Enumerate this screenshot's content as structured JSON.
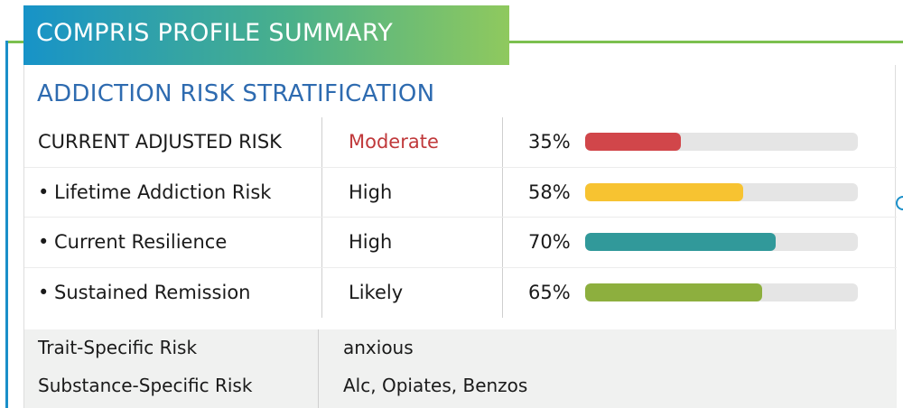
{
  "header": {
    "title": "COMPRIS PROFILE SUMMARY"
  },
  "section": {
    "title": "ADDICTION RISK STRATIFICATION"
  },
  "risk_rows": [
    {
      "label": "CURRENT ADJUSTED RISK",
      "bullet": "",
      "level": "Moderate",
      "percent_text": "35%",
      "percent": 0.35,
      "bar_color": "#d1464a"
    },
    {
      "label": "Lifetime Addiction Risk",
      "bullet": "•",
      "level": "High",
      "percent_text": "58%",
      "percent": 0.58,
      "bar_color": "#f7c331"
    },
    {
      "label": "Current Resilience",
      "bullet": "•",
      "level": "High",
      "percent_text": "70%",
      "percent": 0.7,
      "bar_color": "#31999a"
    },
    {
      "label": "Sustained Remission",
      "bullet": "•",
      "level": "Likely",
      "percent_text": "65%",
      "percent": 0.65,
      "bar_color": "#8daf3e"
    }
  ],
  "specific_risks": [
    {
      "label": "Trait-Specific Risk",
      "value": "anxious"
    },
    {
      "label": "Substance-Specific Risk",
      "value": "Alc, Opiates, Benzos"
    }
  ],
  "colors": {
    "moderate_text": "#c0393b",
    "section_title": "#2e6bb0",
    "frame_green": "#7cc04f",
    "frame_blue": "#1a8fc9"
  }
}
